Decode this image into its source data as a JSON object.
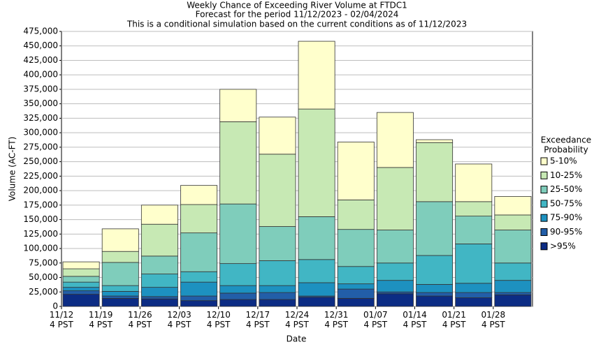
{
  "chart_data": {
    "type": "stacked_bar",
    "title": [
      "Weekly Chance of Exceeding River Volume at FTDC1",
      "Forecast for the period 11/12/2023 - 02/04/2024",
      "This is a conditional simulation based on the current conditions as of 11/12/2023"
    ],
    "x_label": "Date",
    "y_label": "Volume (AC-FT)",
    "legend_title": [
      "Exceedance",
      "Probability"
    ],
    "categories": [
      "11/12 4 PST",
      "11/19 4 PST",
      "11/26 4 PST",
      "12/03 4 PST",
      "12/10 4 PST",
      "12/17 4 PST",
      "12/24 4 PST",
      "12/31 4 PST",
      "01/07 4 PST",
      "01/14 4 PST",
      "01/21 4 PST",
      "01/28 4 PST"
    ],
    "series": [
      {
        "name": ">95%",
        "color": "#0c2c84",
        "values": [
          21000,
          14000,
          13000,
          10000,
          12000,
          12000,
          16000,
          14000,
          22000,
          18000,
          15000,
          20000
        ]
      },
      {
        "name": "90-95%",
        "color": "#225ea8",
        "values": [
          6000,
          4000,
          4000,
          8000,
          11000,
          12000,
          2000,
          16000,
          3000,
          6000,
          9000,
          4000
        ]
      },
      {
        "name": "75-90%",
        "color": "#1d91c0",
        "values": [
          6000,
          8000,
          16000,
          24000,
          13000,
          12000,
          23000,
          9000,
          20000,
          14000,
          16000,
          21000
        ]
      },
      {
        "name": "50-75%",
        "color": "#41b6c4",
        "values": [
          9000,
          10000,
          23000,
          18000,
          38000,
          43000,
          40000,
          30000,
          30000,
          50000,
          68000,
          30000
        ]
      },
      {
        "name": "25-50%",
        "color": "#7fcdbb",
        "values": [
          10000,
          40000,
          31000,
          67000,
          103000,
          59000,
          74000,
          64000,
          57000,
          93000,
          48000,
          57000
        ]
      },
      {
        "name": "10-25%",
        "color": "#c7e9b4",
        "values": [
          13000,
          19000,
          55000,
          49000,
          142000,
          125000,
          186000,
          51000,
          108000,
          102000,
          25000,
          26000
        ]
      },
      {
        "name": "5-10%",
        "color": "#ffffcc",
        "values": [
          12000,
          39000,
          33000,
          33000,
          56000,
          64000,
          117000,
          100000,
          95000,
          5000,
          65000,
          32000
        ]
      }
    ],
    "ylim": [
      0,
      475000
    ],
    "yticks": [
      0,
      {
        "value": 25000,
        "label": "25,000"
      },
      {
        "value": 50000,
        "label": "50,000"
      },
      {
        "value": 75000,
        "label": "75,000"
      },
      {
        "value": 100000,
        "label": "100,000"
      },
      {
        "value": 125000,
        "label": "125,000"
      },
      {
        "value": 150000,
        "label": "150,000"
      },
      {
        "value": 175000,
        "label": "175,000"
      },
      {
        "value": 200000,
        "label": "200,000"
      },
      {
        "value": 225000,
        "label": "225,000"
      },
      {
        "value": 250000,
        "label": "250,000"
      },
      {
        "value": 275000,
        "label": "275,000"
      },
      {
        "value": 300000,
        "label": "300,000"
      },
      {
        "value": 325000,
        "label": "325,000"
      },
      {
        "value": 350000,
        "label": "350,000"
      },
      {
        "value": 375000,
        "label": "375,000"
      },
      {
        "value": 400000,
        "label": "400,000"
      },
      {
        "value": 425000,
        "label": "425,000"
      },
      {
        "value": 450000,
        "label": "450,000"
      },
      {
        "value": 475000,
        "label": "475,000"
      }
    ],
    "grid": true,
    "legend": "right"
  }
}
